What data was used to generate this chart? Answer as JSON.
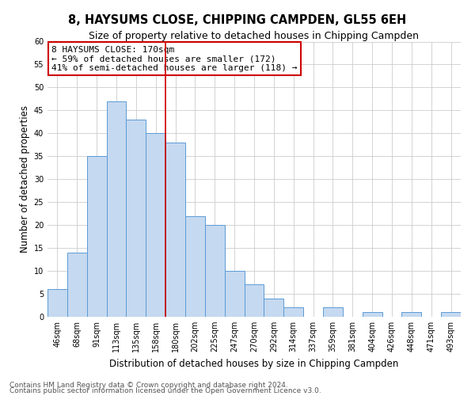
{
  "title": "8, HAYSUMS CLOSE, CHIPPING CAMPDEN, GL55 6EH",
  "subtitle": "Size of property relative to detached houses in Chipping Campden",
  "xlabel": "Distribution of detached houses by size in Chipping Campden",
  "ylabel": "Number of detached properties",
  "footer_line1": "Contains HM Land Registry data © Crown copyright and database right 2024.",
  "footer_line2": "Contains public sector information licensed under the Open Government Licence v3.0.",
  "bar_labels": [
    "46sqm",
    "68sqm",
    "91sqm",
    "113sqm",
    "135sqm",
    "158sqm",
    "180sqm",
    "202sqm",
    "225sqm",
    "247sqm",
    "270sqm",
    "292sqm",
    "314sqm",
    "337sqm",
    "359sqm",
    "381sqm",
    "404sqm",
    "426sqm",
    "448sqm",
    "471sqm",
    "493sqm"
  ],
  "bar_values": [
    6,
    14,
    35,
    47,
    43,
    40,
    38,
    22,
    20,
    10,
    7,
    4,
    2,
    0,
    2,
    0,
    1,
    0,
    1,
    0,
    1
  ],
  "ylim": [
    0,
    60
  ],
  "yticks": [
    0,
    5,
    10,
    15,
    20,
    25,
    30,
    35,
    40,
    45,
    50,
    55,
    60
  ],
  "bar_color": "#c5d9f0",
  "bar_edge_color": "#5b9bd5",
  "vline_color": "#cc0000",
  "vline_x": 5.5,
  "annotation_title": "8 HAYSUMS CLOSE: 170sqm",
  "annotation_line1": "← 59% of detached houses are smaller (172)",
  "annotation_line2": "41% of semi-detached houses are larger (118) →",
  "annotation_box_color": "#cc0000",
  "annotation_box_fill": "#ffffff",
  "background_color": "#ffffff",
  "grid_color": "#cccccc",
  "title_fontsize": 10.5,
  "subtitle_fontsize": 9,
  "axis_label_fontsize": 8.5,
  "tick_fontsize": 7,
  "annotation_fontsize": 8,
  "footer_fontsize": 6.5
}
